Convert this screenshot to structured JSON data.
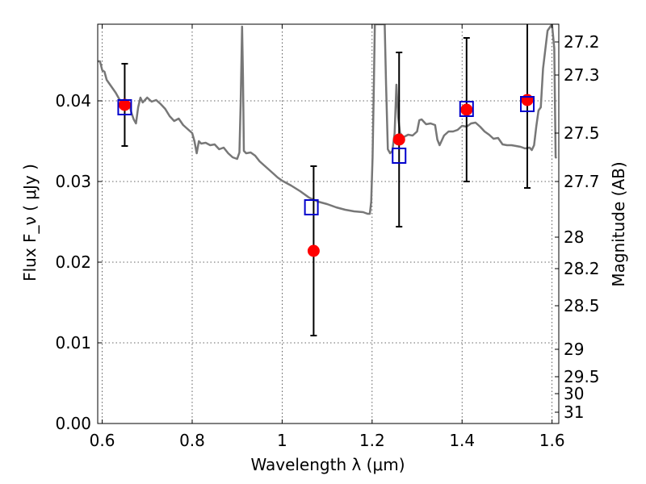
{
  "chart_data": {
    "type": "scatter",
    "xlabel": "Wavelength  λ (μm)",
    "ylabel": "Flux  F_ν  ( μJy )",
    "ylabel_right": "Magnitude (AB)",
    "xlim": [
      0.59,
      1.615
    ],
    "ylim": [
      0.0,
      0.0495
    ],
    "grid": true,
    "x_ticks": [
      {
        "value": 0.6,
        "label": "0.6"
      },
      {
        "value": 0.8,
        "label": "0.8"
      },
      {
        "value": 1.0,
        "label": "1"
      },
      {
        "value": 1.2,
        "label": "1.2"
      },
      {
        "value": 1.4,
        "label": "1.4"
      },
      {
        "value": 1.6,
        "label": "1.6"
      }
    ],
    "y_ticks": [
      {
        "value": 0.0,
        "label": "0.00"
      },
      {
        "value": 0.01,
        "label": "0.01"
      },
      {
        "value": 0.02,
        "label": "0.02"
      },
      {
        "value": 0.03,
        "label": "0.03"
      },
      {
        "value": 0.04,
        "label": "0.04"
      }
    ],
    "mag_ticks": [
      {
        "value": 0.0473,
        "label": "27.2"
      },
      {
        "value": 0.0432,
        "label": "27.3"
      },
      {
        "value": 0.036,
        "label": "27.5"
      },
      {
        "value": 0.03,
        "label": "27.7"
      },
      {
        "value": 0.0231,
        "label": "28"
      },
      {
        "value": 0.0192,
        "label": "28.2"
      },
      {
        "value": 0.0146,
        "label": "28.5"
      },
      {
        "value": 0.0092,
        "label": "29"
      },
      {
        "value": 0.0058,
        "label": "29.5"
      },
      {
        "value": 0.0037,
        "label": "30"
      },
      {
        "value": 0.0014,
        "label": "31"
      }
    ],
    "series": [
      {
        "type": "line",
        "color": "#777777",
        "points": [
          [
            0.59,
            0.0449
          ],
          [
            0.595,
            0.0449
          ],
          [
            0.6,
            0.0438
          ],
          [
            0.605,
            0.0436
          ],
          [
            0.61,
            0.0426
          ],
          [
            0.62,
            0.0418
          ],
          [
            0.63,
            0.041
          ],
          [
            0.64,
            0.04
          ],
          [
            0.65,
            0.0397
          ],
          [
            0.66,
            0.0396
          ],
          [
            0.665,
            0.0385
          ],
          [
            0.67,
            0.0377
          ],
          [
            0.675,
            0.0372
          ],
          [
            0.68,
            0.0392
          ],
          [
            0.685,
            0.0404
          ],
          [
            0.69,
            0.0398
          ],
          [
            0.7,
            0.0404
          ],
          [
            0.71,
            0.0399
          ],
          [
            0.72,
            0.0401
          ],
          [
            0.73,
            0.0396
          ],
          [
            0.74,
            0.039
          ],
          [
            0.75,
            0.0381
          ],
          [
            0.76,
            0.0375
          ],
          [
            0.77,
            0.0378
          ],
          [
            0.78,
            0.037
          ],
          [
            0.79,
            0.0365
          ],
          [
            0.8,
            0.036
          ],
          [
            0.805,
            0.035
          ],
          [
            0.81,
            0.0335
          ],
          [
            0.815,
            0.035
          ],
          [
            0.82,
            0.0347
          ],
          [
            0.83,
            0.0348
          ],
          [
            0.84,
            0.0345
          ],
          [
            0.85,
            0.0346
          ],
          [
            0.86,
            0.034
          ],
          [
            0.87,
            0.0342
          ],
          [
            0.88,
            0.0335
          ],
          [
            0.89,
            0.033
          ],
          [
            0.9,
            0.0328
          ],
          [
            0.905,
            0.0336
          ],
          [
            0.908,
            0.04
          ],
          [
            0.911,
            0.0492
          ],
          [
            0.913,
            0.043
          ],
          [
            0.915,
            0.0338
          ],
          [
            0.92,
            0.0335
          ],
          [
            0.93,
            0.0336
          ],
          [
            0.94,
            0.0332
          ],
          [
            0.95,
            0.0325
          ],
          [
            0.96,
            0.032
          ],
          [
            0.97,
            0.0315
          ],
          [
            0.98,
            0.031
          ],
          [
            0.99,
            0.0305
          ],
          [
            1.0,
            0.0301
          ],
          [
            1.02,
            0.0295
          ],
          [
            1.04,
            0.0288
          ],
          [
            1.06,
            0.028
          ],
          [
            1.08,
            0.0275
          ],
          [
            1.1,
            0.0272
          ],
          [
            1.12,
            0.0268
          ],
          [
            1.14,
            0.0265
          ],
          [
            1.16,
            0.0263
          ],
          [
            1.18,
            0.0262
          ],
          [
            1.19,
            0.026
          ],
          [
            1.195,
            0.026
          ],
          [
            1.198,
            0.0275
          ],
          [
            1.201,
            0.033
          ],
          [
            1.204,
            0.042
          ],
          [
            1.206,
            0.0495
          ],
          [
            1.228,
            0.0495
          ],
          [
            1.231,
            0.042
          ],
          [
            1.235,
            0.034
          ],
          [
            1.24,
            0.0335
          ],
          [
            1.245,
            0.0338
          ],
          [
            1.25,
            0.036
          ],
          [
            1.254,
            0.042
          ],
          [
            1.258,
            0.038
          ],
          [
            1.262,
            0.036
          ],
          [
            1.27,
            0.0355
          ],
          [
            1.28,
            0.0358
          ],
          [
            1.29,
            0.0357
          ],
          [
            1.3,
            0.0362
          ],
          [
            1.305,
            0.0376
          ],
          [
            1.31,
            0.0377
          ],
          [
            1.32,
            0.0371
          ],
          [
            1.33,
            0.0372
          ],
          [
            1.34,
            0.037
          ],
          [
            1.345,
            0.0352
          ],
          [
            1.35,
            0.0345
          ],
          [
            1.36,
            0.0357
          ],
          [
            1.37,
            0.0362
          ],
          [
            1.38,
            0.0362
          ],
          [
            1.39,
            0.0364
          ],
          [
            1.4,
            0.0369
          ],
          [
            1.41,
            0.0368
          ],
          [
            1.42,
            0.0372
          ],
          [
            1.43,
            0.0373
          ],
          [
            1.44,
            0.0368
          ],
          [
            1.45,
            0.0362
          ],
          [
            1.46,
            0.0358
          ],
          [
            1.47,
            0.0353
          ],
          [
            1.48,
            0.0354
          ],
          [
            1.49,
            0.0346
          ],
          [
            1.5,
            0.0345
          ],
          [
            1.51,
            0.0345
          ],
          [
            1.52,
            0.0344
          ],
          [
            1.53,
            0.0343
          ],
          [
            1.54,
            0.0341
          ],
          [
            1.55,
            0.0342
          ],
          [
            1.555,
            0.0339
          ],
          [
            1.56,
            0.0345
          ],
          [
            1.565,
            0.0368
          ],
          [
            1.57,
            0.0388
          ],
          [
            1.575,
            0.0392
          ],
          [
            1.58,
            0.044
          ],
          [
            1.59,
            0.0487
          ],
          [
            1.6,
            0.0495
          ],
          [
            1.605,
            0.0465
          ],
          [
            1.608,
            0.033
          ],
          [
            1.61,
            0.0329
          ]
        ]
      },
      {
        "type": "scatter",
        "marker": "circle",
        "color": "#ff0000",
        "x": [
          0.65,
          1.07,
          1.26,
          1.41,
          1.545
        ],
        "y": [
          0.0395,
          0.0214,
          0.0352,
          0.0389,
          0.0401
        ],
        "yerr": [
          0.0051,
          0.0105,
          0.0108,
          0.0089,
          0.0109
        ]
      },
      {
        "type": "scatter",
        "marker": "square-open",
        "color": "#0000cc",
        "x": [
          0.65,
          1.065,
          1.26,
          1.41,
          1.545
        ],
        "y": [
          0.0392,
          0.0268,
          0.0332,
          0.039,
          0.0396
        ]
      }
    ]
  }
}
